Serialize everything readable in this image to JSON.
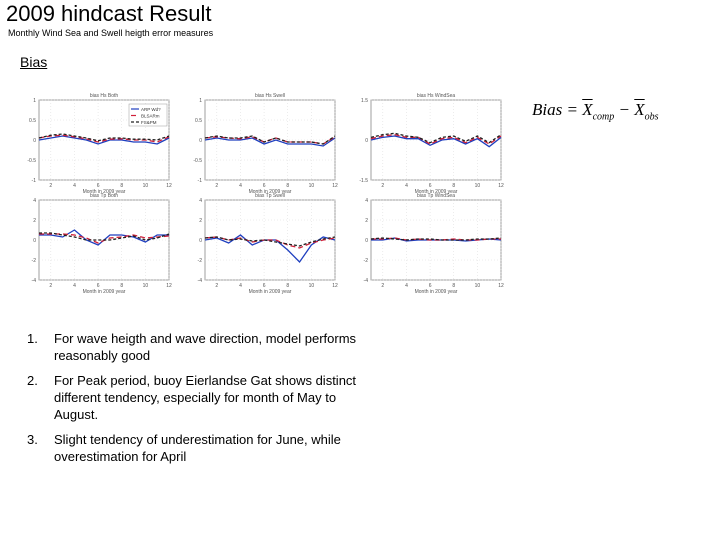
{
  "title": "2009 hindcast Result",
  "subtitle": "Monthly Wind Sea and Swell heigth error measures",
  "section_label": "Bias",
  "formula": {
    "lhs": "Bias",
    "xbar1": "X",
    "sub1": "comp",
    "xbar2": "X",
    "sub2": "obs"
  },
  "colors": {
    "series_a": "#1f3fbf",
    "series_b": "#d0203a",
    "series_c": "#202020"
  },
  "panels": [
    {
      "title": "bias Hs Both",
      "xlabel": "Month in 2009 year",
      "yticks": [
        "1",
        "0.5",
        "0",
        "-0.5",
        "-1"
      ],
      "xticks": [
        "2",
        "4",
        "6",
        "8",
        "10",
        "12"
      ],
      "legend": [
        "ARP Wd?",
        "BLSARm",
        "FS&PM"
      ],
      "chart_data": {
        "type": "line",
        "ylim": [
          -1,
          1
        ],
        "x": [
          1,
          2,
          3,
          4,
          5,
          6,
          7,
          8,
          9,
          10,
          11,
          12
        ],
        "series": [
          {
            "values": [
              0.0,
              0.05,
              0.1,
              0.05,
              0.0,
              -0.1,
              0.0,
              0.0,
              -0.05,
              -0.05,
              -0.1,
              0.05
            ]
          },
          {
            "values": [
              0.05,
              0.1,
              0.12,
              0.08,
              0.03,
              -0.05,
              0.02,
              0.03,
              0.0,
              0.0,
              -0.05,
              0.08
            ]
          },
          {
            "values": [
              0.05,
              0.12,
              0.15,
              0.1,
              0.05,
              -0.02,
              0.05,
              0.05,
              0.02,
              0.02,
              0.0,
              0.1
            ]
          }
        ]
      }
    },
    {
      "title": "bias Hs Swell",
      "xlabel": "Month in 2009 year",
      "yticks": [
        "1",
        "0.5",
        "0",
        "-0.5",
        "-1"
      ],
      "xticks": [
        "2",
        "4",
        "6",
        "8",
        "10",
        "12"
      ],
      "legend": [],
      "chart_data": {
        "type": "line",
        "ylim": [
          -1,
          1
        ],
        "x": [
          1,
          2,
          3,
          4,
          5,
          6,
          7,
          8,
          9,
          10,
          11,
          12
        ],
        "series": [
          {
            "values": [
              0.0,
              0.05,
              0.0,
              0.0,
              0.05,
              -0.1,
              0.0,
              -0.1,
              -0.1,
              -0.1,
              -0.15,
              0.05
            ]
          },
          {
            "values": [
              0.05,
              0.08,
              0.05,
              0.03,
              0.08,
              -0.05,
              0.05,
              -0.05,
              -0.05,
              -0.05,
              -0.1,
              0.08
            ]
          },
          {
            "values": [
              0.05,
              0.1,
              0.05,
              0.05,
              0.1,
              -0.05,
              0.05,
              -0.05,
              -0.05,
              -0.05,
              -0.1,
              0.1
            ]
          }
        ]
      }
    },
    {
      "title": "bias Hs WindSea",
      "xlabel": "Month in 2009 year",
      "yticks": [
        "1.5",
        "0",
        "-1.5"
      ],
      "xticks": [
        "2",
        "4",
        "6",
        "8",
        "10",
        "12"
      ],
      "legend": [],
      "chart_data": {
        "type": "line",
        "ylim": [
          -3,
          3
        ],
        "x": [
          1,
          2,
          3,
          4,
          5,
          6,
          7,
          8,
          9,
          10,
          11,
          12
        ],
        "series": [
          {
            "values": [
              0.0,
              0.2,
              0.3,
              0.1,
              0.1,
              -0.4,
              0.0,
              0.1,
              -0.3,
              0.1,
              -0.5,
              0.2
            ]
          },
          {
            "values": [
              0.1,
              0.3,
              0.4,
              0.2,
              0.2,
              -0.3,
              0.1,
              0.2,
              -0.2,
              0.2,
              -0.3,
              0.3
            ]
          },
          {
            "values": [
              0.2,
              0.4,
              0.5,
              0.3,
              0.2,
              -0.2,
              0.2,
              0.3,
              -0.1,
              0.3,
              -0.2,
              0.4
            ]
          }
        ]
      }
    },
    {
      "title": "bias Tp Both",
      "xlabel": "Month in 2009 year",
      "yticks": [
        "4",
        "2",
        "0",
        "-2",
        "-4"
      ],
      "xticks": [
        "2",
        "4",
        "6",
        "8",
        "10",
        "12"
      ],
      "legend": [],
      "chart_data": {
        "type": "line",
        "ylim": [
          -4,
          4
        ],
        "x": [
          1,
          2,
          3,
          4,
          5,
          6,
          7,
          8,
          9,
          10,
          11,
          12
        ],
        "series": [
          {
            "values": [
              0.5,
              0.5,
              0.3,
              1.0,
              0.0,
              -0.5,
              0.5,
              0.5,
              0.3,
              -0.2,
              0.5,
              0.5
            ]
          },
          {
            "values": [
              0.6,
              0.6,
              0.6,
              0.5,
              0.2,
              -0.3,
              0.2,
              0.3,
              0.5,
              0.2,
              0.3,
              0.4
            ]
          },
          {
            "values": [
              0.7,
              0.7,
              0.5,
              0.3,
              0.0,
              0.0,
              0.0,
              0.2,
              0.4,
              0.0,
              0.2,
              0.6
            ]
          }
        ]
      }
    },
    {
      "title": "bias Tp Swell",
      "xlabel": "Month in 2009 year",
      "yticks": [
        "4",
        "2",
        "0",
        "-2",
        "-4"
      ],
      "xticks": [
        "2",
        "4",
        "6",
        "8",
        "10",
        "12"
      ],
      "legend": [],
      "chart_data": {
        "type": "line",
        "ylim": [
          -4,
          4
        ],
        "x": [
          1,
          2,
          3,
          4,
          5,
          6,
          7,
          8,
          9,
          10,
          11,
          12
        ],
        "series": [
          {
            "values": [
              0.0,
              0.2,
              -0.3,
              0.5,
              -0.5,
              0.0,
              0.0,
              -1.0,
              -2.2,
              -0.5,
              0.3,
              0.0
            ]
          },
          {
            "values": [
              0.2,
              0.3,
              0.0,
              0.2,
              -0.2,
              0.0,
              0.0,
              -0.5,
              -0.8,
              -0.3,
              0.0,
              0.2
            ]
          },
          {
            "values": [
              0.2,
              0.3,
              0.0,
              0.1,
              -0.1,
              0.0,
              -0.2,
              -0.4,
              -0.6,
              -0.2,
              0.1,
              0.3
            ]
          }
        ]
      }
    },
    {
      "title": "bias Tp WindSea",
      "xlabel": "Month in 2009 year",
      "yticks": [
        "4",
        "2",
        "0",
        "-2",
        "-4"
      ],
      "xticks": [
        "2",
        "4",
        "6",
        "8",
        "10",
        "12"
      ],
      "legend": [],
      "chart_data": {
        "type": "line",
        "ylim": [
          -4,
          4
        ],
        "x": [
          1,
          2,
          3,
          4,
          5,
          6,
          7,
          8,
          9,
          10,
          11,
          12
        ],
        "series": [
          {
            "values": [
              0.0,
              0.0,
              0.2,
              -0.1,
              0.0,
              0.0,
              0.0,
              0.0,
              -0.1,
              0.0,
              0.1,
              0.0
            ]
          },
          {
            "values": [
              0.1,
              0.1,
              0.2,
              0.0,
              0.1,
              0.0,
              0.0,
              0.1,
              0.0,
              0.0,
              0.1,
              0.1
            ]
          },
          {
            "values": [
              0.1,
              0.2,
              0.1,
              0.0,
              0.1,
              0.1,
              0.0,
              0.0,
              0.0,
              0.1,
              0.1,
              0.2
            ]
          }
        ]
      }
    }
  ],
  "notes": [
    {
      "num": "1.",
      "text": "For wave heigth and wave direction, model performs reasonably good"
    },
    {
      "num": "2.",
      "text": "For Peak period, buoy Eierlandse Gat shows distinct different tendency, especially for month of May to August."
    },
    {
      "num": "3.",
      "text": "Slight tendency of underestimation for June, while overestimation for April"
    }
  ]
}
